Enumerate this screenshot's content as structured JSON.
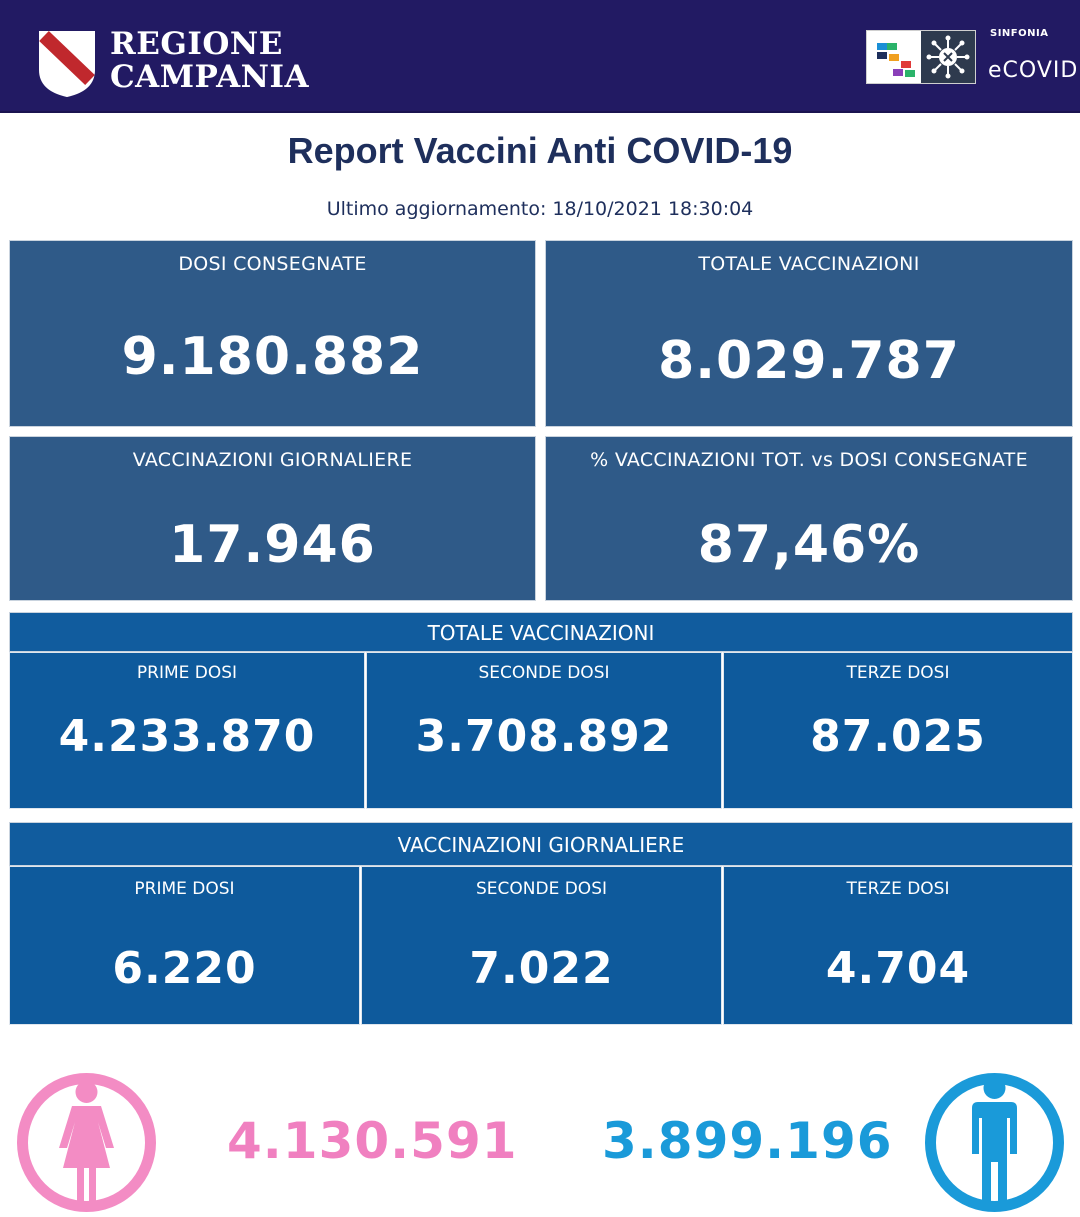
{
  "header": {
    "brand_line1": "REGIONE",
    "brand_line2": "CAMPANIA",
    "sinfonia": "SINFONIA",
    "ecovid": "eCOVID",
    "bg_color": "#221a63"
  },
  "title": "Report Vaccini Anti COVID-19",
  "updated": "Ultimo aggiornamento: 18/10/2021  18:30:04",
  "summary": {
    "dosi_consegnate": {
      "label": "DOSI  CONSEGNATE",
      "value": "9.180.882"
    },
    "totale_vaccinazioni": {
      "label": "TOTALE VACCINAZIONI",
      "value": "8.029.787"
    },
    "vaccinazioni_giornaliere": {
      "label": "VACCINAZIONI GIORNALIERE",
      "value": "17.946"
    },
    "percentuale": {
      "label": "% VACCINAZIONI TOT. vs DOSI CONSEGNATE",
      "value": "87,46%"
    }
  },
  "totale_section": {
    "header": "TOTALE VACCINAZIONI",
    "cells": [
      {
        "label": "PRIME DOSI",
        "value": "4.233.870"
      },
      {
        "label": "SECONDE DOSI",
        "value": "3.708.892"
      },
      {
        "label": "TERZE DOSI",
        "value": "87.025"
      }
    ]
  },
  "giornaliere_section": {
    "header": "VACCINAZIONI GIORNALIERE",
    "cells": [
      {
        "label": "PRIME DOSI",
        "value": "6.220"
      },
      {
        "label": "SECONDE DOSI",
        "value": "7.022"
      },
      {
        "label": "TERZE DOSI",
        "value": "4.704"
      }
    ]
  },
  "gender": {
    "female": {
      "value": "4.130.591",
      "color": "#f080c0",
      "icon": "female-icon"
    },
    "male": {
      "value": "3.899.196",
      "color": "#1a9ad9",
      "icon": "male-icon"
    }
  }
}
